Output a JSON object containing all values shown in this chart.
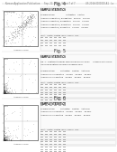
{
  "bg_color": "#f0f0f0",
  "page_bg": "#ffffff",
  "header_left": "Korean Application Publication",
  "header_mid": "Sep. 22, 2016   Sheet 7 of 7",
  "header_right": "US 2016/0000000 A1   La",
  "panels": [
    {
      "fig_label": "Fig. 4",
      "scatter_type": "diagonal",
      "right_lines": [
        "SAMPLE STATISTICS",
        "",
        "SAMPLE NAME                    Untreated    Control",
        "Annexin V negative / PI negative    xx.xx%    xx.xx%",
        "Annexin V positive / PI negative    xx.xx%    xx.xx%",
        "Annexin V negative / PI positive    xx.xx%    xx.xx%",
        "Annexin V positive / PI positive    xx.xx%    xx.xx%"
      ],
      "table_header": "count   %Total  %Gated  Mean  GMean  %CV",
      "table_rows": [
        "xxx    xxx    xxx    xxx    xxx    xxx",
        "xxx    xxx    xxx    xxx    xxx    xxx",
        "xxx    xxx    xxx    xxx    xxx    xxx",
        "xxx    xxx    xxx    xxx    xxx    xxx"
      ]
    },
    {
      "fig_label": "Fig. 5",
      "scatter_type": "bottom_left",
      "right_lines": [
        "SAMPLE STATISTICS",
        "",
        "Fig. 1 - Treatment specific small guide nucleic acids      SAMPLE STATISTICS",
        "inducing apoptosis of human leukemia cells",
        "",
        "SAMPLE NAME          Untreated    Control    Anti-miR",
        "Annexin V-FITC negative    xx.xx%    xx.xx%    xx.xx%",
        "Annexin V-FITC positive    xx.xx%    xx.xx%    xx.xx%"
      ],
      "table_header": "count   %Total  %Gated  Mean  GMean  %CV",
      "table_rows": [
        "xxx    xxx    xxx    xxx    xxx    xxx",
        "xxx    xxx    xxx    xxx    xxx    xxx",
        "xxx    xxx    xxx    xxx    xxx    xxx",
        "xxx    xxx    xxx    xxx    xxx    xxx",
        "xxx    xxx    xxx    xxx    xxx    xxx",
        "xxx    xxx    xxx    xxx    xxx    xxx",
        "xxx    xxx    xxx    xxx    xxx    xxx",
        "xxx    xxx    xxx    xxx    xxx    xxx",
        "xxx    xxx    xxx    xxx    xxx    xxx"
      ]
    },
    {
      "fig_label": "Fig. 6",
      "scatter_type": "bottom_left_2",
      "right_lines": [
        "SAMPLE STATISTICS",
        "",
        "SAMPLE NAME          Untreated    Control    Anti-miR",
        "Annexin V-FITC negative    xx.xx%    xx.xx%    xx.xx%",
        "Annexin V-FITC positive    xx.xx%    xx.xx%    xx.xx%"
      ],
      "table_header": "count   %Total  %Gated  Mean  GMean  %CV",
      "table_rows": [
        "xxx    xxx    xxx    xxx    xxx    xxx",
        "xxx    xxx    xxx    xxx    xxx    xxx",
        "xxx    xxx    xxx    xxx    xxx    xxx",
        "xxx    xxx    xxx    xxx    xxx    xxx",
        "xxx    xxx    xxx    xxx    xxx    xxx",
        "xxx    xxx    xxx    xxx    xxx    xxx",
        "xxx    xxx    xxx    xxx    xxx    xxx",
        "xxx    xxx    xxx    xxx    xxx    xxx",
        "xxx    xxx    xxx    xxx    xxx    xxx"
      ]
    }
  ]
}
